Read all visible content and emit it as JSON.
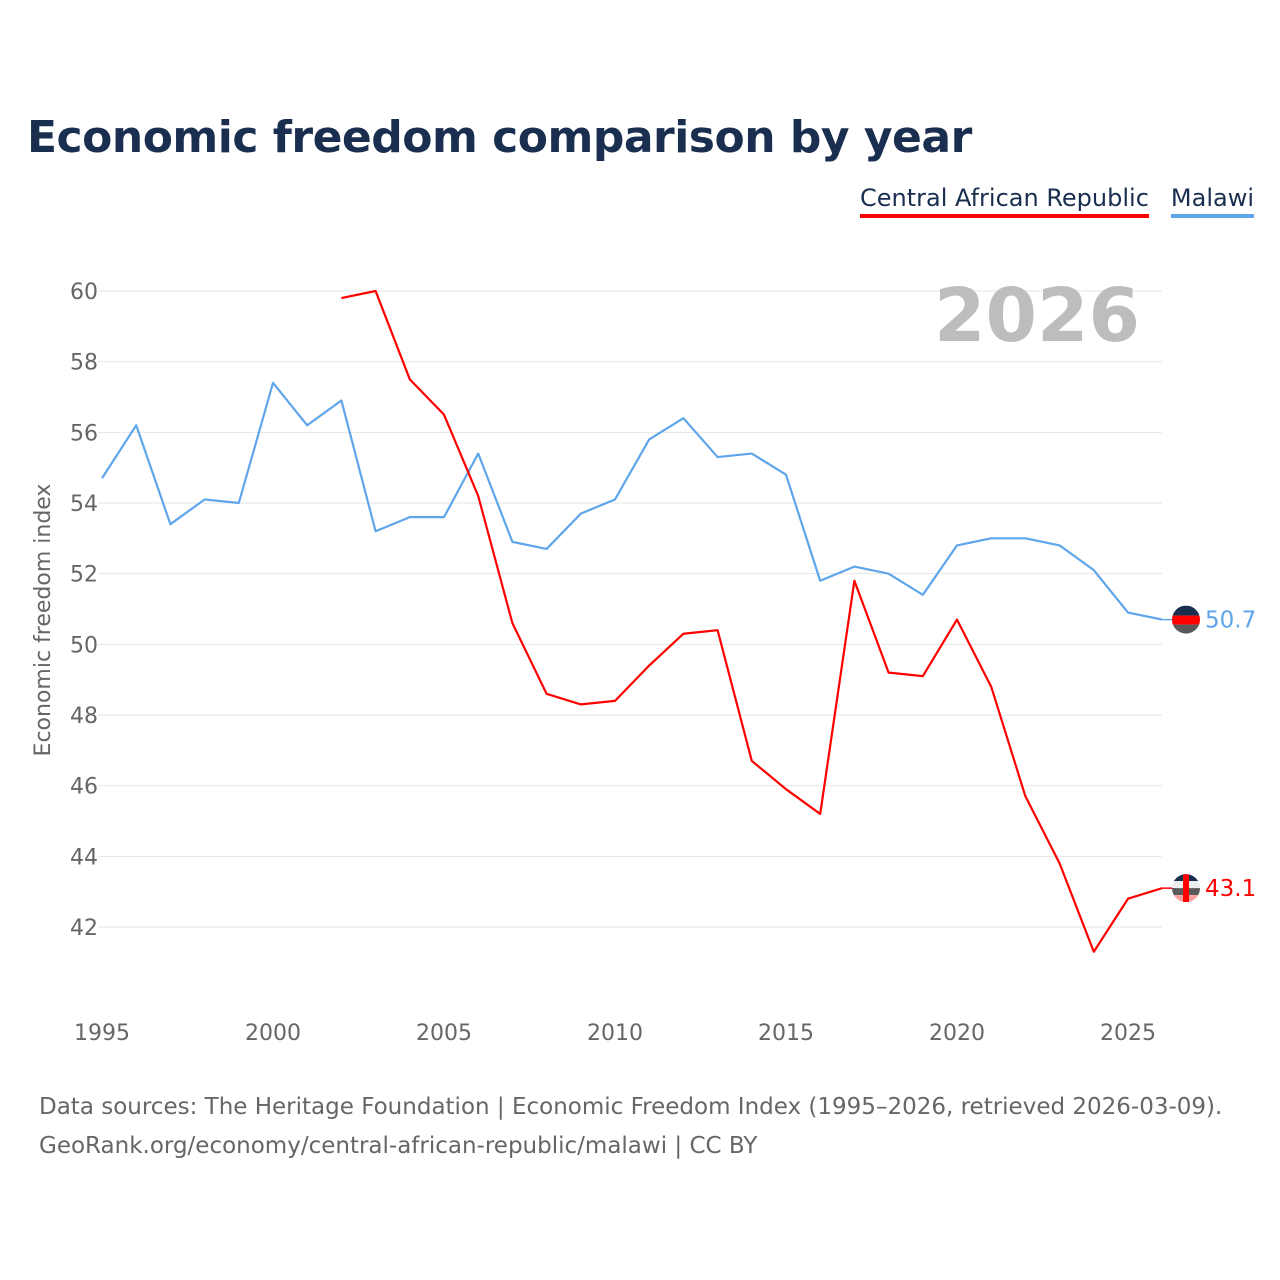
{
  "title": "Economic freedom comparison by year",
  "footer": {
    "line1": "Data sources: The Heritage Foundation | Economic Freedom Index (1995–2026, retrieved 2026-03-09).",
    "line2": "GeoRank.org/economy/central-african-republic/malawi | CC BY"
  },
  "chart_data": {
    "type": "line",
    "title": "Economic freedom comparison by year",
    "xlabel": "",
    "ylabel": "Economic freedom index",
    "year_label": "2026",
    "xlim": [
      1995,
      2026
    ],
    "ylim": [
      40,
      61
    ],
    "xticks": [
      1995,
      2000,
      2005,
      2010,
      2015,
      2020,
      2025
    ],
    "yticks": [
      42,
      44,
      46,
      48,
      50,
      52,
      54,
      56,
      58,
      60
    ],
    "grid": true,
    "legend_position": "top-right",
    "series": [
      {
        "name": "Central African Republic",
        "color": "#ff0000",
        "end_label": "43.1",
        "x": [
          2002,
          2003,
          2004,
          2005,
          2006,
          2007,
          2008,
          2009,
          2010,
          2011,
          2012,
          2013,
          2014,
          2015,
          2016,
          2017,
          2018,
          2019,
          2020,
          2021,
          2022,
          2023,
          2024,
          2025,
          2026
        ],
        "values": [
          59.8,
          60.0,
          57.5,
          56.5,
          54.2,
          50.6,
          48.6,
          48.3,
          48.4,
          49.4,
          50.3,
          50.4,
          46.7,
          45.9,
          45.2,
          51.8,
          49.2,
          49.1,
          50.7,
          48.8,
          45.7,
          43.8,
          41.3,
          42.8,
          43.1
        ]
      },
      {
        "name": "Malawi",
        "color": "#5ea5ea",
        "end_label": "50.7",
        "x": [
          1995,
          1996,
          1997,
          1998,
          1999,
          2000,
          2001,
          2002,
          2003,
          2004,
          2005,
          2006,
          2007,
          2008,
          2009,
          2010,
          2011,
          2012,
          2013,
          2014,
          2015,
          2016,
          2017,
          2018,
          2019,
          2020,
          2021,
          2022,
          2023,
          2024,
          2025,
          2026
        ],
        "values": [
          54.7,
          56.2,
          53.4,
          54.1,
          54.0,
          57.4,
          56.2,
          56.9,
          53.2,
          53.6,
          53.6,
          55.4,
          52.9,
          52.7,
          53.7,
          54.1,
          55.8,
          56.4,
          55.3,
          55.4,
          54.8,
          51.8,
          52.2,
          52.0,
          51.4,
          52.8,
          53.0,
          53.0,
          52.8,
          52.1,
          50.9,
          50.7
        ]
      }
    ]
  }
}
